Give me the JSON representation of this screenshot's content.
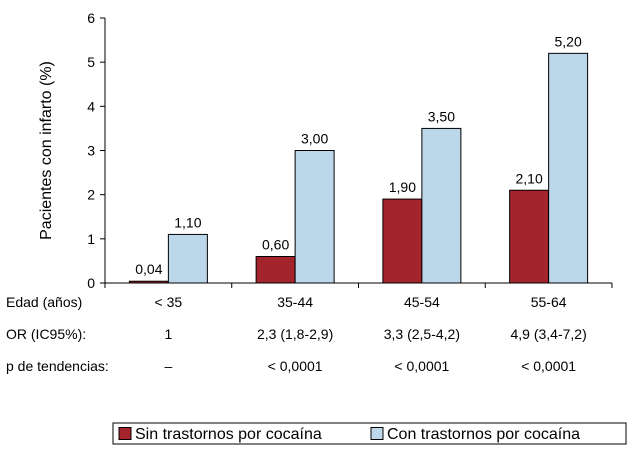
{
  "chart_data": {
    "type": "bar",
    "ylabel": "Pacientes con infarto (%)",
    "ylim": [
      0,
      6
    ],
    "yticks": [
      0,
      1,
      2,
      3,
      4,
      5,
      6
    ],
    "categories": [
      "< 35",
      "35-44",
      "45-54",
      "55-64"
    ],
    "series": [
      {
        "name": "Sin trastornos por cocaína",
        "color": "#a3242c",
        "values": [
          0.04,
          0.6,
          1.9,
          2.1
        ],
        "labels": [
          "0,04",
          "0,60",
          "1,90",
          "2,10"
        ]
      },
      {
        "name": "Con trastornos por cocaína",
        "color": "#bdd7ea",
        "values": [
          1.1,
          3.0,
          3.5,
          5.2
        ],
        "labels": [
          "1,10",
          "3,00",
          "3,50",
          "5,20"
        ]
      }
    ],
    "table_rows": [
      {
        "header": "Edad (años)",
        "values": [
          "< 35",
          "35-44",
          "45-54",
          "55-64"
        ]
      },
      {
        "header": "OR (IC95%):",
        "values": [
          "1",
          "2,3 (1,8-2,9)",
          "3,3 (2,5-4,2)",
          "4,9 (3,4-7,2)"
        ]
      },
      {
        "header": "p de tendencias:",
        "values": [
          "–",
          "< 0,0001",
          "< 0,0001",
          "< 0,0001"
        ]
      }
    ],
    "legend_position": "bottom-right",
    "grid": false
  }
}
